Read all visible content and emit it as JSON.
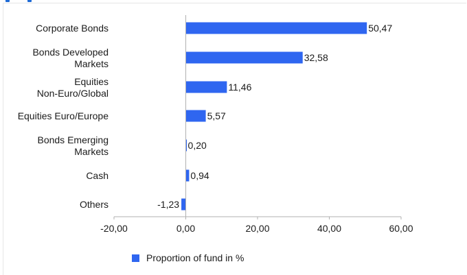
{
  "colors": {
    "bar": "#2f66f0",
    "axis": "#b0b0b0",
    "accent": "#1e6ad6"
  },
  "chart_data": {
    "type": "bar",
    "orientation": "horizontal",
    "categories": [
      [
        "Corporate Bonds"
      ],
      [
        "Bonds Developed",
        "Markets"
      ],
      [
        "Equities",
        "Non-Euro/Global"
      ],
      [
        "Equities Euro/Europe"
      ],
      [
        "Bonds Emerging",
        "Markets"
      ],
      [
        "Cash"
      ],
      [
        "Others"
      ]
    ],
    "series": [
      {
        "name": "Proportion of fund in %",
        "values": [
          50.47,
          32.58,
          11.46,
          5.57,
          0.2,
          0.94,
          -1.23
        ]
      }
    ],
    "value_labels": [
      "50,47",
      "32,58",
      "11,46",
      "5,57",
      "0,20",
      "0,94",
      "-1,23"
    ],
    "xlim": [
      -20,
      60
    ],
    "xticks": [
      -20,
      0,
      20,
      40,
      60
    ],
    "xtick_labels": [
      "-20,00",
      "0,00",
      "20,00",
      "40,00",
      "60,00"
    ],
    "grid": false,
    "legend_position": "bottom"
  }
}
